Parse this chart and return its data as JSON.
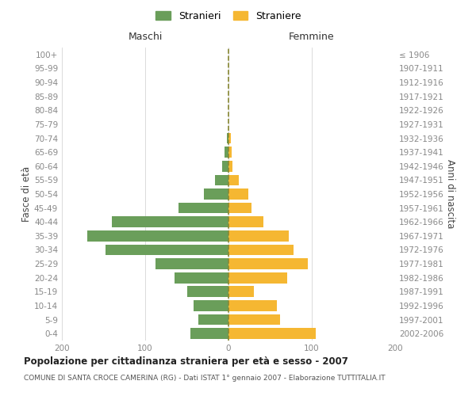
{
  "age_groups": [
    "0-4",
    "5-9",
    "10-14",
    "15-19",
    "20-24",
    "25-29",
    "30-34",
    "35-39",
    "40-44",
    "45-49",
    "50-54",
    "55-59",
    "60-64",
    "65-69",
    "70-74",
    "75-79",
    "80-84",
    "85-89",
    "90-94",
    "95-99",
    "100+"
  ],
  "birth_years": [
    "2002-2006",
    "1997-2001",
    "1992-1996",
    "1987-1991",
    "1982-1986",
    "1977-1981",
    "1972-1976",
    "1967-1971",
    "1962-1966",
    "1957-1961",
    "1952-1956",
    "1947-1951",
    "1942-1946",
    "1937-1941",
    "1932-1936",
    "1927-1931",
    "1922-1926",
    "1917-1921",
    "1912-1916",
    "1907-1911",
    "≤ 1906"
  ],
  "males": [
    46,
    36,
    42,
    50,
    65,
    88,
    148,
    170,
    140,
    60,
    30,
    16,
    8,
    5,
    2,
    0,
    0,
    0,
    0,
    0,
    0
  ],
  "females": [
    105,
    62,
    58,
    30,
    70,
    95,
    78,
    72,
    42,
    28,
    24,
    12,
    5,
    4,
    3,
    0,
    0,
    0,
    0,
    0,
    0
  ],
  "male_color": "#6a9e5a",
  "female_color": "#f5b732",
  "background_color": "#ffffff",
  "grid_color": "#cccccc",
  "dashed_line_color_dark": "#888833",
  "dashed_line_color_light": "#ddcc44",
  "title": "Popolazione per cittadinanza straniera per età e sesso - 2007",
  "subtitle": "COMUNE DI SANTA CROCE CAMERINA (RG) - Dati ISTAT 1° gennaio 2007 - Elaborazione TUTTITALIA.IT",
  "ylabel_left": "Fasce di età",
  "ylabel_right": "Anni di nascita",
  "xlabel_left": "Maschi",
  "xlabel_right": "Femmine",
  "legend_male": "Stranieri",
  "legend_female": "Straniere",
  "xlim": 200,
  "tick_fontsize": 7.5,
  "label_fontsize": 9,
  "axis_label_fontsize": 8.5,
  "title_fontsize": 8.5,
  "subtitle_fontsize": 6.5,
  "tick_color": "#888888",
  "label_color": "#444444",
  "title_color": "#222222",
  "subtitle_color": "#555555",
  "bar_height": 0.78
}
